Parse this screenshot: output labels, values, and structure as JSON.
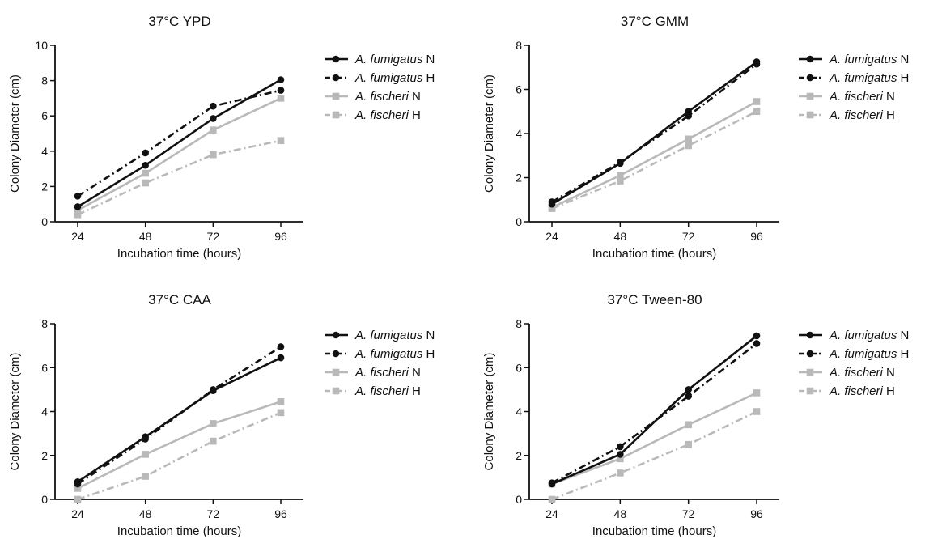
{
  "chart_data": [
    {
      "type": "line",
      "title": "37°C YPD",
      "xlabel": "Incubation time (hours)",
      "ylabel": "Colony Diameter (cm)",
      "categories": [
        "24",
        "48",
        "72",
        "96"
      ],
      "ylim": [
        0,
        10
      ],
      "yticks": [
        "0",
        "2",
        "4",
        "6",
        "8",
        "10"
      ],
      "series": [
        {
          "legend_italic": "A. fumigatus",
          "legend_suffix": " N",
          "values": [
            0.85,
            3.2,
            5.85,
            8.05
          ]
        },
        {
          "legend_italic": "A. fumigatus",
          "legend_suffix": " H",
          "values": [
            1.45,
            3.9,
            6.55,
            7.45
          ]
        },
        {
          "legend_italic": "A. fischeri",
          "legend_suffix": " N",
          "values": [
            0.65,
            2.75,
            5.2,
            7.0
          ]
        },
        {
          "legend_italic": "A. fischeri",
          "legend_suffix": " H",
          "values": [
            0.4,
            2.2,
            3.8,
            4.6
          ]
        }
      ]
    },
    {
      "type": "line",
      "title": "37°C GMM",
      "xlabel": "Incubation time (hours)",
      "ylabel": "Colony Diameter (cm)",
      "categories": [
        "24",
        "48",
        "72",
        "96"
      ],
      "ylim": [
        0,
        8
      ],
      "yticks": [
        "0",
        "2",
        "4",
        "6",
        "8"
      ],
      "series": [
        {
          "legend_italic": "A. fumigatus",
          "legend_suffix": " N",
          "values": [
            0.8,
            2.65,
            5.0,
            7.25
          ]
        },
        {
          "legend_italic": "A. fumigatus",
          "legend_suffix": " H",
          "values": [
            0.9,
            2.7,
            4.8,
            7.15
          ]
        },
        {
          "legend_italic": "A. fischeri",
          "legend_suffix": " N",
          "values": [
            0.65,
            2.1,
            3.75,
            5.45
          ]
        },
        {
          "legend_italic": "A. fischeri",
          "legend_suffix": " H",
          "values": [
            0.6,
            1.85,
            3.45,
            5.0
          ]
        }
      ]
    },
    {
      "type": "line",
      "title": "37°C CAA",
      "xlabel": "Incubation time (hours)",
      "ylabel": "Colony Diameter (cm)",
      "categories": [
        "24",
        "48",
        "72",
        "96"
      ],
      "ylim": [
        0,
        8
      ],
      "yticks": [
        "0",
        "2",
        "4",
        "6",
        "8"
      ],
      "series": [
        {
          "legend_italic": "A. fumigatus",
          "legend_suffix": " N",
          "values": [
            0.8,
            2.85,
            4.95,
            6.45
          ]
        },
        {
          "legend_italic": "A. fumigatus",
          "legend_suffix": " H",
          "values": [
            0.7,
            2.75,
            5.0,
            6.95
          ]
        },
        {
          "legend_italic": "A. fischeri",
          "legend_suffix": " N",
          "values": [
            0.5,
            2.05,
            3.45,
            4.45
          ]
        },
        {
          "legend_italic": "A. fischeri",
          "legend_suffix": " H",
          "values": [
            0.0,
            1.05,
            2.65,
            3.95
          ]
        }
      ]
    },
    {
      "type": "line",
      "title": "37°C Tween-80",
      "xlabel": "Incubation time (hours)",
      "ylabel": "Colony Diameter (cm)",
      "categories": [
        "24",
        "48",
        "72",
        "96"
      ],
      "ylim": [
        0,
        8
      ],
      "yticks": [
        "0",
        "2",
        "4",
        "6",
        "8"
      ],
      "series": [
        {
          "legend_italic": "A. fumigatus",
          "legend_suffix": " N",
          "values": [
            0.7,
            2.05,
            5.0,
            7.45
          ]
        },
        {
          "legend_italic": "A. fumigatus",
          "legend_suffix": " H",
          "values": [
            0.75,
            2.4,
            4.7,
            7.1
          ]
        },
        {
          "legend_italic": "A. fischeri",
          "legend_suffix": " N",
          "values": [
            0.7,
            1.85,
            3.4,
            4.85
          ]
        },
        {
          "legend_italic": "A. fischeri",
          "legend_suffix": " H",
          "values": [
            0.0,
            1.2,
            2.5,
            4.0
          ]
        }
      ]
    }
  ],
  "series_styles": [
    {
      "color": "#111111",
      "dash": "",
      "marker": "circle"
    },
    {
      "color": "#111111",
      "dash": "9 4 2 4",
      "marker": "circle"
    },
    {
      "color": "#b9b9b9",
      "dash": "",
      "marker": "square"
    },
    {
      "color": "#b9b9b9",
      "dash": "9 4 2 4",
      "marker": "square"
    }
  ]
}
